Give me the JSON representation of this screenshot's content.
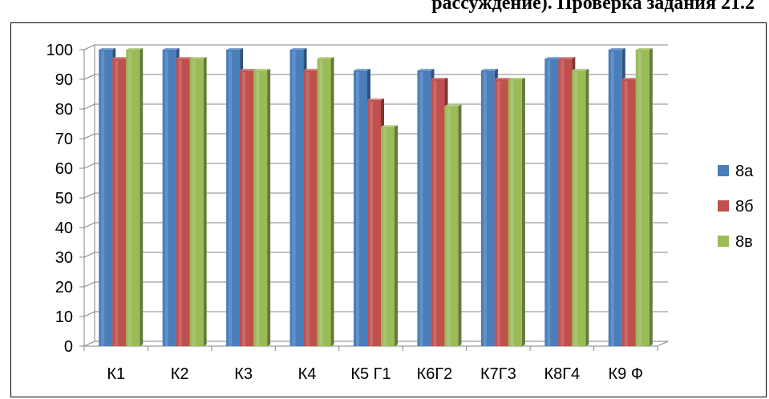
{
  "header": {
    "text": "рассуждение). Проверка задания 21.2"
  },
  "chart_data": {
    "type": "bar",
    "title": "",
    "xlabel": "",
    "ylabel": "",
    "ylim": [
      0,
      100
    ],
    "yticks": [
      0,
      10,
      20,
      30,
      40,
      50,
      60,
      70,
      80,
      90,
      100
    ],
    "grid": true,
    "legend_position": "right",
    "categories": [
      "К1",
      "К2",
      "К3",
      "К4",
      "К5 Г1",
      "К6Г2",
      "К7Г3",
      "К8Г4",
      "К9 Ф"
    ],
    "series": [
      {
        "name": "8а",
        "color": "#4a7ebb",
        "values": [
          100,
          100,
          100,
          100,
          93,
          93,
          93,
          97,
          100
        ]
      },
      {
        "name": "8б",
        "color": "#c0504d",
        "values": [
          97,
          97,
          93,
          93,
          83,
          90,
          90,
          97,
          90
        ]
      },
      {
        "name": "8в",
        "color": "#9bbb59",
        "values": [
          100,
          97,
          93,
          97,
          74,
          81,
          90,
          93,
          100
        ]
      }
    ]
  }
}
